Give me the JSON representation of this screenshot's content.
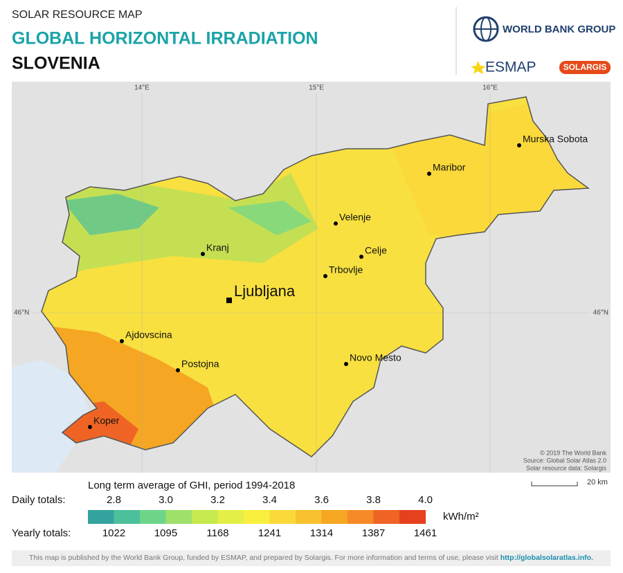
{
  "header": {
    "label": "SOLAR RESOURCE MAP",
    "title": "GLOBAL HORIZONTAL IRRADIATION",
    "country": "SLOVENIA"
  },
  "logos": {
    "world_bank": "WORLD BANK GROUP",
    "esmap": "ESMAP",
    "solargis": "SOLARGIS"
  },
  "map": {
    "graticule": {
      "lon": [
        "14°E",
        "15°E",
        "16°E"
      ],
      "lat": [
        "46°N"
      ]
    },
    "cities": [
      {
        "name": "Murska Sobota",
        "capital": false
      },
      {
        "name": "Maribor",
        "capital": false
      },
      {
        "name": "Velenje",
        "capital": false
      },
      {
        "name": "Celje",
        "capital": false
      },
      {
        "name": "Trbovlje",
        "capital": false
      },
      {
        "name": "Kranj",
        "capital": false
      },
      {
        "name": "Ljubljana",
        "capital": true
      },
      {
        "name": "Ajdovscina",
        "capital": false
      },
      {
        "name": "Postojna",
        "capital": false
      },
      {
        "name": "Novo Mesto",
        "capital": false
      },
      {
        "name": "Koper",
        "capital": false
      }
    ],
    "credits": [
      "© 2019 The World Bank",
      "Source: Global Solar Atlas 2.0",
      "Solar resource data: Solargis"
    ],
    "scale_bar": "20 km"
  },
  "legend": {
    "title": "Long term average of GHI, period 1994-2018",
    "daily_label": "Daily totals:",
    "daily_values": [
      "2.8",
      "3.0",
      "3.2",
      "3.4",
      "3.6",
      "3.8",
      "4.0"
    ],
    "yearly_label": "Yearly totals:",
    "yearly_values": [
      1022,
      1095,
      1168,
      1241,
      1314,
      1387,
      1461
    ],
    "unit": "kWh/m²",
    "colors": [
      "#34a39d",
      "#4cc09b",
      "#6dd58a",
      "#9ee06a",
      "#c6e94e",
      "#e3ef46",
      "#f8ef3e",
      "#fbd93a",
      "#f7c22d",
      "#f5a623",
      "#f58a27",
      "#ef6424",
      "#e6401e"
    ]
  },
  "footer": {
    "text": "This map is published by the World Bank Group, funded by ESMAP, and prepared by Solargis. For more information and terms of use, please visit ",
    "link": "http://globalsolaratlas.info."
  }
}
